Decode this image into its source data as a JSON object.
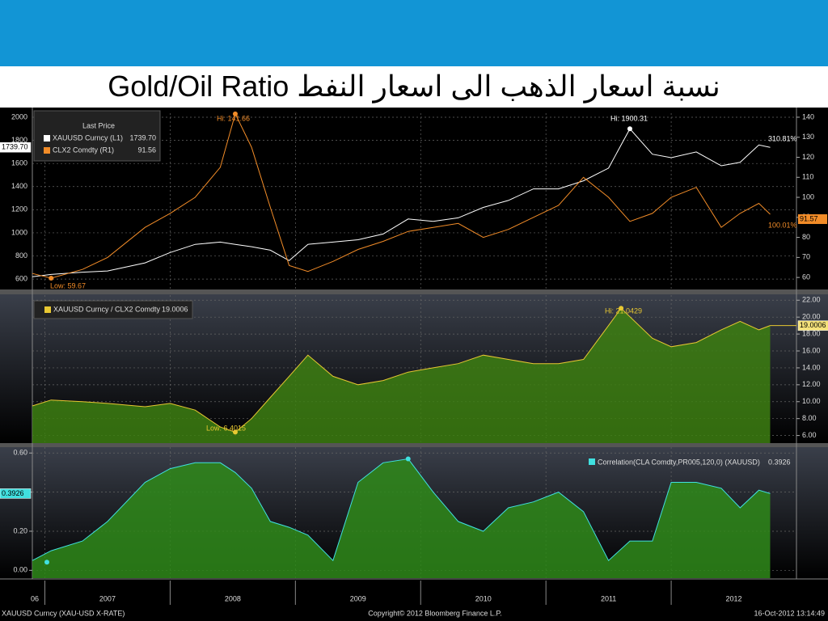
{
  "header": {
    "title": "Gold/Oil Ratio نسبة اسعار الذهب الى اسعار النفط"
  },
  "chart_data": [
    {
      "type": "line",
      "legend_title": "Last Price",
      "grid": true,
      "x": [
        2006.9,
        2007.05,
        2007.3,
        2007.5,
        2007.8,
        2008.0,
        2008.2,
        2008.4,
        2008.52,
        2008.65,
        2008.8,
        2008.95,
        2009.1,
        2009.3,
        2009.5,
        2009.7,
        2009.9,
        2010.1,
        2010.3,
        2010.5,
        2010.7,
        2010.9,
        2011.1,
        2011.3,
        2011.5,
        2011.67,
        2011.85,
        2012.0,
        2012.2,
        2012.4,
        2012.55,
        2012.7,
        2012.79
      ],
      "series": [
        {
          "name": "XAUUSD Curncy  (L1)",
          "color": "#ffffff",
          "last_label": "1739.70",
          "values": [
            620,
            640,
            660,
            670,
            740,
            830,
            900,
            920,
            900,
            880,
            850,
            760,
            900,
            920,
            940,
            990,
            1120,
            1100,
            1130,
            1220,
            1280,
            1380,
            1380,
            1450,
            1560,
            1900.31,
            1680,
            1650,
            1700,
            1580,
            1610,
            1760,
            1739.7
          ]
        },
        {
          "name": "CLX2 Comdty  (R1)",
          "color": "#f28c28",
          "axis": "y2",
          "values": [
            62,
            59.67,
            64,
            70,
            85,
            92,
            100,
            115,
            141.66,
            125,
            95,
            66,
            63,
            68,
            74,
            78,
            83,
            85,
            87,
            80,
            84,
            90,
            96,
            110,
            100,
            88,
            92,
            100,
            105,
            85,
            92,
            97,
            91.56
          ]
        }
      ],
      "ylim": [
        510,
        2035
      ],
      "yticks": [
        600,
        800,
        1000,
        1200,
        1400,
        1600,
        1800,
        2000
      ],
      "y2lim": [
        54,
        142
      ],
      "y2ticks": [
        60,
        70,
        80,
        90,
        100,
        110,
        120,
        130,
        140
      ],
      "annotations": [
        "Hi: 141.66",
        "Low: 59.67",
        "Hi: 1900.31",
        "310.81%",
        "100.01%",
        "91.57"
      ]
    },
    {
      "type": "area",
      "grid": true,
      "yaxis_side": "right",
      "x": [
        2006.9,
        2007.05,
        2007.3,
        2007.5,
        2007.8,
        2008.0,
        2008.2,
        2008.4,
        2008.52,
        2008.65,
        2008.8,
        2008.95,
        2009.1,
        2009.3,
        2009.5,
        2009.7,
        2009.9,
        2010.1,
        2010.3,
        2010.5,
        2010.7,
        2010.9,
        2011.1,
        2011.3,
        2011.5,
        2011.6,
        2011.85,
        2012.0,
        2012.2,
        2012.4,
        2012.55,
        2012.7,
        2012.79
      ],
      "series": [
        {
          "name": "XAUUSD Curncy / CLX2 Comdty",
          "color": "#e8c832",
          "fill": "#3d7f12",
          "values": [
            9.5,
            10.2,
            10.0,
            9.8,
            9.4,
            9.8,
            9.0,
            7.0,
            6.4015,
            8.0,
            10.5,
            13.0,
            15.5,
            13.0,
            12.0,
            12.5,
            13.5,
            14.0,
            14.5,
            15.5,
            15.0,
            14.5,
            14.5,
            15.0,
            19.0,
            21.0429,
            17.5,
            16.5,
            17.0,
            18.5,
            19.5,
            18.5,
            19.0006
          ]
        }
      ],
      "ylim": [
        5.1,
        22.6
      ],
      "yticks": [
        {
          "value": 6,
          "label": "6.00"
        },
        {
          "value": 8,
          "label": "8.00"
        },
        {
          "value": 10,
          "label": "10.00"
        },
        {
          "value": 12,
          "label": "12.00"
        },
        {
          "value": 14,
          "label": "14.00"
        },
        {
          "value": 16,
          "label": "16.00"
        },
        {
          "value": 18,
          "label": "18.00"
        },
        {
          "value": 20,
          "label": "20.00"
        },
        {
          "value": 22,
          "label": "22.00"
        }
      ],
      "annotations": [
        "Hi: 21.0429",
        "Low: 6.4015"
      ]
    },
    {
      "type": "area",
      "grid": true,
      "x": [
        2006.9,
        2007.05,
        2007.3,
        2007.5,
        2007.8,
        2008.0,
        2008.2,
        2008.4,
        2008.52,
        2008.65,
        2008.8,
        2008.95,
        2009.1,
        2009.3,
        2009.5,
        2009.7,
        2009.9,
        2010.1,
        2010.3,
        2010.5,
        2010.7,
        2010.9,
        2011.1,
        2011.3,
        2011.5,
        2011.67,
        2011.85,
        2012.0,
        2012.2,
        2012.4,
        2012.55,
        2012.7,
        2012.79
      ],
      "series": [
        {
          "name": "Correlation(CLA Comdty,PR005,120,0) (XAUUSD)",
          "color": "#40e0e0",
          "fill": "#2f8a1a",
          "values": [
            0.05,
            0.1,
            0.15,
            0.25,
            0.45,
            0.52,
            0.55,
            0.55,
            0.5,
            0.42,
            0.25,
            0.22,
            0.18,
            0.05,
            0.45,
            0.55,
            0.57,
            0.4,
            0.25,
            0.2,
            0.32,
            0.35,
            0.4,
            0.3,
            0.05,
            0.15,
            0.15,
            0.45,
            0.45,
            0.42,
            0.32,
            0.41,
            0.3926
          ]
        }
      ],
      "ylim": [
        -0.04,
        0.63
      ],
      "yticks": [
        {
          "value": 0,
          "label": "0.00"
        },
        {
          "value": 0.2,
          "label": "0.20"
        },
        {
          "value": 0.4,
          "label": "0.40"
        },
        {
          "value": 0.6,
          "label": "0.60"
        }
      ],
      "xlim": [
        2006.9,
        2013.0
      ],
      "xticks": [
        {
          "value": 2006,
          "label": "06"
        },
        2007,
        2008,
        2009,
        2010,
        2011,
        2012
      ]
    }
  ],
  "footer": {
    "left": "XAUUSD Curncy (XAU-USD X-RATE)",
    "center": "Copyright© 2012 Bloomberg Finance L.P.",
    "right": "16-Oct-2012 13:14:49"
  }
}
